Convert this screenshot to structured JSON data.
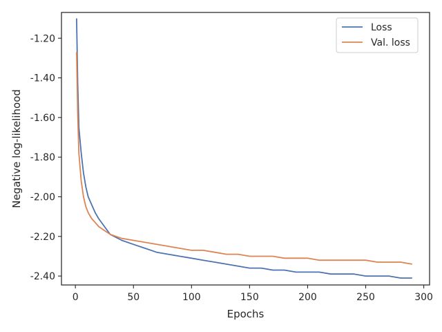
{
  "chart_data": {
    "type": "line",
    "title": "",
    "xlabel": "Epochs",
    "ylabel": "Negative log-likelihood",
    "xlim": [
      -12,
      305
    ],
    "ylim": [
      -2.445,
      -1.07
    ],
    "x_ticks": [
      0,
      50,
      100,
      150,
      200,
      250,
      300
    ],
    "y_ticks": [
      {
        "value": -1.2,
        "label": "-1.20"
      },
      {
        "value": -1.4,
        "label": "-1.40"
      },
      {
        "value": -1.6,
        "label": "-1.60"
      },
      {
        "value": -1.8,
        "label": "-1.80"
      },
      {
        "value": -2.0,
        "label": "-2.00"
      },
      {
        "value": -2.2,
        "label": "-2.20"
      },
      {
        "value": -2.4,
        "label": "-2.40"
      }
    ],
    "grid": false,
    "legend": {
      "position": "top-right"
    },
    "series": [
      {
        "name": "Loss",
        "color": "#4c72b0",
        "points": [
          [
            1,
            -1.1
          ],
          [
            2,
            -1.42
          ],
          [
            3,
            -1.65
          ],
          [
            5,
            -1.78
          ],
          [
            7,
            -1.88
          ],
          [
            9,
            -1.95
          ],
          [
            11,
            -2.0
          ],
          [
            14,
            -2.04
          ],
          [
            17,
            -2.08
          ],
          [
            20,
            -2.11
          ],
          [
            25,
            -2.15
          ],
          [
            30,
            -2.19
          ],
          [
            40,
            -2.22
          ],
          [
            50,
            -2.24
          ],
          [
            60,
            -2.26
          ],
          [
            70,
            -2.28
          ],
          [
            80,
            -2.29
          ],
          [
            90,
            -2.3
          ],
          [
            100,
            -2.31
          ],
          [
            110,
            -2.32
          ],
          [
            120,
            -2.33
          ],
          [
            130,
            -2.34
          ],
          [
            140,
            -2.35
          ],
          [
            150,
            -2.36
          ],
          [
            160,
            -2.36
          ],
          [
            170,
            -2.37
          ],
          [
            180,
            -2.37
          ],
          [
            190,
            -2.38
          ],
          [
            200,
            -2.38
          ],
          [
            210,
            -2.38
          ],
          [
            220,
            -2.39
          ],
          [
            230,
            -2.39
          ],
          [
            240,
            -2.39
          ],
          [
            250,
            -2.4
          ],
          [
            260,
            -2.4
          ],
          [
            270,
            -2.4
          ],
          [
            280,
            -2.41
          ],
          [
            290,
            -2.41
          ]
        ]
      },
      {
        "name": "Val. loss",
        "color": "#dd8452",
        "points": [
          [
            1,
            -1.27
          ],
          [
            2,
            -1.58
          ],
          [
            3,
            -1.78
          ],
          [
            5,
            -1.92
          ],
          [
            7,
            -2.0
          ],
          [
            9,
            -2.05
          ],
          [
            11,
            -2.08
          ],
          [
            14,
            -2.11
          ],
          [
            17,
            -2.13
          ],
          [
            20,
            -2.15
          ],
          [
            25,
            -2.17
          ],
          [
            30,
            -2.19
          ],
          [
            40,
            -2.21
          ],
          [
            50,
            -2.22
          ],
          [
            60,
            -2.23
          ],
          [
            70,
            -2.24
          ],
          [
            80,
            -2.25
          ],
          [
            90,
            -2.26
          ],
          [
            100,
            -2.27
          ],
          [
            110,
            -2.27
          ],
          [
            120,
            -2.28
          ],
          [
            130,
            -2.29
          ],
          [
            140,
            -2.29
          ],
          [
            150,
            -2.3
          ],
          [
            160,
            -2.3
          ],
          [
            170,
            -2.3
          ],
          [
            180,
            -2.31
          ],
          [
            190,
            -2.31
          ],
          [
            200,
            -2.31
          ],
          [
            210,
            -2.32
          ],
          [
            220,
            -2.32
          ],
          [
            230,
            -2.32
          ],
          [
            240,
            -2.32
          ],
          [
            250,
            -2.32
          ],
          [
            260,
            -2.33
          ],
          [
            270,
            -2.33
          ],
          [
            280,
            -2.33
          ],
          [
            290,
            -2.34
          ]
        ]
      }
    ]
  }
}
